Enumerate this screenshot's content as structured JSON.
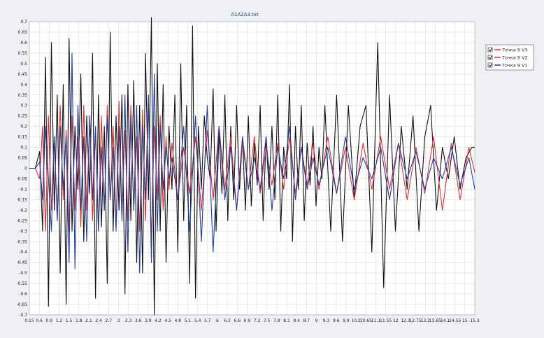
{
  "chart_data": {
    "type": "line",
    "title": "A1A2A3.txt",
    "xlabel": "",
    "ylabel": "",
    "xlim": [
      0.15,
      15.3
    ],
    "ylim": [
      -0.7,
      0.7
    ],
    "grid": true,
    "legend_placement": "right",
    "x_tick_labels": [
      "0.15",
      "0.6",
      "0.9",
      "1.2",
      "1.5",
      "1.8",
      "2.1",
      "2.4",
      "2.7",
      "3",
      "3.3",
      "3.6",
      "3.9",
      "4.2",
      "4.5",
      "4.8",
      "5.1",
      "5.4",
      "5.7",
      "6",
      "6.3",
      "6.6",
      "6.9",
      "7.2",
      "7.5",
      "7.8",
      "8.1",
      "8.4",
      "8.7",
      "9",
      "9.3",
      "9.6",
      "9.9",
      "10.2",
      "10.65",
      "11.1",
      "11.55",
      "12",
      "12.3",
      "12.75",
      "13.2",
      "13.65",
      "14.1",
      "14.55",
      "15",
      "15.3"
    ],
    "y_tick_labels": [
      "0.7",
      "0.65",
      "0.6",
      "0.55",
      "0.5",
      "0.45",
      "0.4",
      "0.35",
      "0.3",
      "0.25",
      "0.2",
      "0.15",
      "0.1",
      "0.05",
      "0",
      "-0.05",
      "-0.1",
      "-0.15",
      "-0.2",
      "-0.25",
      "-0.3",
      "-0.35",
      "-0.4",
      "-0.45",
      "-0.5",
      "-0.55",
      "-0.6",
      "-0.65",
      "-0.7"
    ],
    "series": [
      {
        "name": "Точка 9 V3",
        "color": "#111111",
        "x": [
          0.15,
          0.35,
          0.5,
          0.6,
          0.7,
          0.8,
          0.9,
          1.0,
          1.1,
          1.2,
          1.3,
          1.4,
          1.5,
          1.6,
          1.7,
          1.8,
          1.9,
          2.0,
          2.1,
          2.2,
          2.3,
          2.4,
          2.5,
          2.6,
          2.7,
          2.8,
          2.9,
          3.0,
          3.1,
          3.2,
          3.3,
          3.4,
          3.5,
          3.6,
          3.7,
          3.8,
          3.9,
          4.0,
          4.1,
          4.2,
          4.3,
          4.4,
          4.5,
          4.6,
          4.7,
          4.8,
          4.9,
          5.0,
          5.1,
          5.2,
          5.3,
          5.4,
          5.5,
          5.6,
          5.7,
          5.8,
          5.9,
          6.0,
          6.1,
          6.2,
          6.3,
          6.4,
          6.5,
          6.6,
          6.7,
          6.8,
          6.9,
          7.0,
          7.1,
          7.2,
          7.3,
          7.4,
          7.5,
          7.6,
          7.7,
          7.8,
          7.9,
          8.0,
          8.1,
          8.2,
          8.3,
          8.4,
          8.5,
          8.6,
          8.7,
          8.8,
          8.9,
          9.0,
          9.1,
          9.2,
          9.3,
          9.4,
          9.5,
          9.6,
          9.7,
          9.8,
          9.9,
          10.0,
          10.1,
          10.2,
          10.4,
          10.6,
          10.8,
          11.0,
          11.2,
          11.4,
          11.6,
          11.8,
          12.0,
          12.2,
          12.4,
          12.6,
          12.8,
          13.0,
          13.2,
          13.4,
          13.6,
          13.8,
          14.0,
          14.2,
          14.4,
          14.6,
          14.8,
          15.0,
          15.2,
          15.3
        ],
        "y": [
          0,
          0,
          0.08,
          -0.3,
          0.53,
          -0.66,
          0.6,
          -0.2,
          0.35,
          -0.5,
          0.4,
          -0.65,
          0.62,
          -0.3,
          0.2,
          -0.1,
          0.45,
          -0.35,
          0.25,
          -0.12,
          0.55,
          -0.62,
          0.35,
          -0.28,
          0.2,
          -0.55,
          0.65,
          -0.3,
          0.25,
          -0.2,
          0.35,
          -0.6,
          0.4,
          -0.25,
          0.42,
          -0.45,
          0.3,
          -0.5,
          0.55,
          -0.15,
          0.72,
          -0.7,
          0.5,
          -0.3,
          0.4,
          -0.45,
          0.2,
          -0.1,
          0.35,
          -0.4,
          0.5,
          -0.25,
          0.3,
          -0.55,
          0.68,
          -0.62,
          0.2,
          -0.1,
          0.25,
          0.05,
          -0.05,
          0.38,
          -0.3,
          0.18,
          -0.12,
          0.35,
          -0.25,
          0.2,
          -0.15,
          0.3,
          -0.1,
          0.15,
          -0.2,
          0.25,
          -0.18,
          0.12,
          -0.08,
          0.3,
          -0.25,
          0.15,
          -0.1,
          0.2,
          -0.15,
          0.35,
          -0.3,
          0.1,
          -0.05,
          0.4,
          -0.35,
          0.2,
          -0.1,
          0.3,
          -0.25,
          0.12,
          -0.08,
          0.2,
          -0.18,
          0.1,
          -0.05,
          0.3,
          -0.3,
          0.35,
          -0.35,
          0.3,
          -0.15,
          0.2,
          0.3,
          -0.4,
          0.6,
          -0.57,
          0.35,
          -0.3,
          0.2,
          -0.1,
          0.25,
          -0.3,
          0.15,
          0.3,
          -0.2,
          0.1,
          -0.05,
          0.15,
          -0.1,
          0.05,
          0.1,
          0.1
        ]
      },
      {
        "name": "Точка 9 V2",
        "color": "#e03030",
        "x": [
          0.15,
          0.35,
          0.5,
          0.6,
          0.7,
          0.8,
          0.9,
          1.0,
          1.1,
          1.2,
          1.3,
          1.4,
          1.5,
          1.6,
          1.7,
          1.8,
          1.9,
          2.0,
          2.1,
          2.2,
          2.3,
          2.4,
          2.5,
          2.6,
          2.7,
          2.8,
          2.9,
          3.0,
          3.1,
          3.2,
          3.3,
          3.4,
          3.5,
          3.6,
          3.7,
          3.8,
          3.9,
          4.0,
          4.1,
          4.2,
          4.3,
          4.4,
          4.5,
          4.6,
          4.7,
          4.8,
          4.9,
          5.0,
          5.2,
          5.4,
          5.6,
          5.8,
          6.0,
          6.2,
          6.4,
          6.6,
          6.8,
          7.0,
          7.2,
          7.4,
          7.6,
          7.8,
          8.0,
          8.2,
          8.4,
          8.6,
          8.8,
          9.0,
          9.2,
          9.4,
          9.6,
          9.8,
          10.0,
          10.3,
          10.6,
          10.9,
          11.2,
          11.5,
          11.8,
          12.1,
          12.4,
          12.7,
          13.0,
          13.3,
          13.6,
          13.9,
          14.2,
          14.5,
          14.8,
          15.1,
          15.3
        ],
        "y": [
          0,
          0,
          -0.05,
          0.2,
          -0.3,
          0.25,
          -0.2,
          0.15,
          -0.25,
          0.3,
          -0.15,
          0.18,
          -0.3,
          0.25,
          -0.2,
          0.15,
          -0.28,
          0.3,
          -0.2,
          0.22,
          -0.25,
          0.18,
          -0.3,
          0.25,
          -0.2,
          0.3,
          -0.15,
          0.2,
          -0.28,
          0.32,
          -0.22,
          0.18,
          -0.25,
          0.3,
          -0.2,
          0.15,
          -0.3,
          0.28,
          -0.25,
          0.32,
          -0.35,
          0.2,
          -0.15,
          0.25,
          -0.2,
          0.15,
          -0.1,
          0.12,
          -0.15,
          0.1,
          -0.12,
          0.15,
          -0.2,
          0.18,
          -0.15,
          0.2,
          -0.1,
          0.15,
          -0.2,
          0.12,
          -0.1,
          0.15,
          -0.12,
          0.1,
          -0.08,
          0.12,
          -0.1,
          0.15,
          -0.12,
          0.1,
          -0.08,
          0.12,
          -0.1,
          0.15,
          -0.12,
          0.1,
          -0.15,
          0.12,
          -0.1,
          0.15,
          -0.1,
          0.12,
          -0.15,
          0.1,
          -0.12,
          0.15,
          -0.2,
          0.12,
          -0.15,
          0.1,
          -0.02
        ]
      },
      {
        "name": "Точка 9 V1",
        "color": "#1f3fa0",
        "x": [
          0.15,
          0.35,
          0.5,
          0.6,
          0.7,
          0.8,
          0.9,
          1.0,
          1.1,
          1.2,
          1.3,
          1.4,
          1.5,
          1.6,
          1.7,
          1.8,
          1.9,
          2.0,
          2.1,
          2.2,
          2.3,
          2.4,
          2.5,
          2.6,
          2.7,
          2.8,
          2.9,
          3.0,
          3.1,
          3.2,
          3.3,
          3.4,
          3.5,
          3.6,
          3.7,
          3.8,
          3.9,
          4.0,
          4.1,
          4.2,
          4.3,
          4.4,
          4.5,
          4.6,
          4.7,
          4.8,
          4.9,
          5.0,
          5.2,
          5.4,
          5.6,
          5.8,
          6.0,
          6.2,
          6.4,
          6.6,
          6.8,
          7.0,
          7.2,
          7.4,
          7.6,
          7.8,
          8.0,
          8.2,
          8.4,
          8.6,
          8.8,
          9.0,
          9.2,
          9.4,
          9.6,
          9.8,
          10.0,
          10.3,
          10.6,
          10.9,
          11.2,
          11.5,
          11.8,
          12.1,
          12.4,
          12.7,
          13.0,
          13.3,
          13.6,
          13.9,
          14.2,
          14.5,
          14.8,
          15.1,
          15.3
        ],
        "y": [
          0,
          0,
          0.03,
          -0.15,
          0.2,
          -0.05,
          -0.3,
          0.15,
          -0.25,
          0.2,
          -0.1,
          0.15,
          -0.45,
          0.55,
          -0.48,
          0.3,
          -0.2,
          0.15,
          -0.35,
          0.25,
          -0.15,
          0.2,
          -0.3,
          0.1,
          -0.2,
          0.25,
          -0.15,
          0.1,
          -0.3,
          0.2,
          -0.25,
          0.35,
          -0.4,
          0.25,
          -0.2,
          0.3,
          -0.5,
          0.2,
          -0.15,
          0.35,
          -0.45,
          0.45,
          -0.3,
          0.2,
          -0.1,
          0.1,
          -0.05,
          0.05,
          -0.15,
          0.2,
          -0.3,
          0.25,
          -0.35,
          0.3,
          -0.4,
          0.2,
          -0.15,
          0.1,
          -0.2,
          0.15,
          -0.1,
          0.05,
          -0.1,
          0.15,
          -0.2,
          0.1,
          -0.05,
          0.2,
          -0.15,
          0.1,
          -0.1,
          0.05,
          -0.08,
          0.1,
          -0.12,
          0.15,
          -0.1,
          0.05,
          -0.05,
          0.1,
          -0.15,
          0.12,
          -0.05,
          0.08,
          -0.1,
          0.05,
          -0.05,
          0.1,
          -0.08,
          0.05,
          -0.1
        ]
      }
    ]
  }
}
